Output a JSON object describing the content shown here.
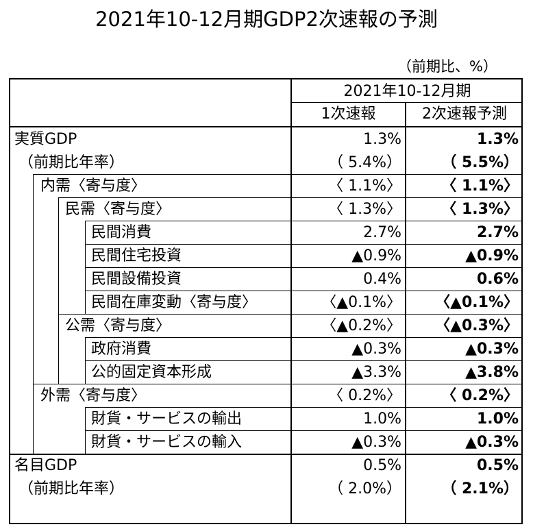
{
  "title": "2021年10-12月期GDP2次速報の予測",
  "unit_note": "（前期比、%）",
  "header": {
    "period": "2021年10-12月期",
    "col1": "1次速報",
    "col2": "2次速報予測"
  },
  "rows": [
    {
      "label": "実質GDP",
      "v1": "1.3%",
      "v2": "1.3%"
    },
    {
      "label": "（前期比年率）",
      "v1": "（ 5.4%）",
      "v2": "（ 5.5%）"
    },
    {
      "label": "内需〈寄与度〉",
      "v1": "〈 1.1%〉",
      "v2": "〈 1.1%〉"
    },
    {
      "label": "民需〈寄与度〉",
      "v1": "〈 1.3%〉",
      "v2": "〈 1.3%〉"
    },
    {
      "label": "民間消費",
      "v1": "2.7%",
      "v2": "2.7%"
    },
    {
      "label": "民間住宅投資",
      "v1": "▲0.9%",
      "v2": "▲0.9%"
    },
    {
      "label": "民間設備投資",
      "v1": "0.4%",
      "v2": "0.6%"
    },
    {
      "label": "民間在庫変動〈寄与度〉",
      "v1": "〈▲0.1%〉",
      "v2": "〈▲0.1%〉"
    },
    {
      "label": "公需〈寄与度〉",
      "v1": "〈▲0.2%〉",
      "v2": "〈▲0.3%〉"
    },
    {
      "label": "政府消費",
      "v1": "▲0.3%",
      "v2": "▲0.3%"
    },
    {
      "label": "公的固定資本形成",
      "v1": "▲3.3%",
      "v2": "▲3.8%"
    },
    {
      "label": "外需〈寄与度〉",
      "v1": "〈 0.2%〉",
      "v2": "〈 0.2%〉"
    },
    {
      "label": "財貨・サービスの輸出",
      "v1": "1.0%",
      "v2": "1.0%"
    },
    {
      "label": "財貨・サービスの輸入",
      "v1": "▲0.3%",
      "v2": "▲0.3%"
    },
    {
      "label": "名目GDP",
      "v1": "0.5%",
      "v2": "0.5%"
    },
    {
      "label": "（前期比年率）",
      "v1": "（ 2.0%）",
      "v2": "（ 2.1%）"
    }
  ]
}
